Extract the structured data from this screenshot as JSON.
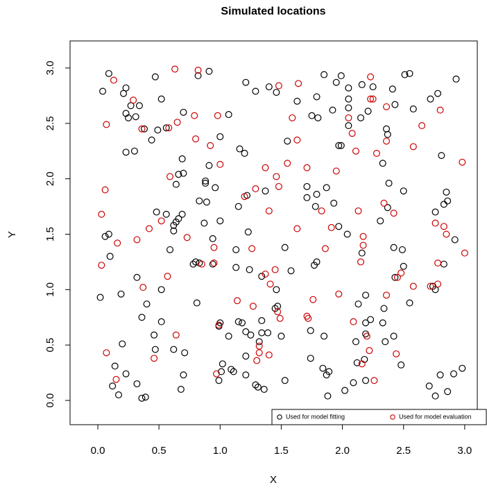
{
  "chart_data": {
    "type": "scatter",
    "title": "Simulated locations",
    "x_label": "X",
    "y_label": "Y",
    "xlim": [
      -0.227,
      3.103
    ],
    "ylim": [
      -0.219,
      3.244
    ],
    "xticks": [
      {
        "value": 0,
        "label": "0.0"
      },
      0.5,
      {
        "value": 1,
        "label": "1.0"
      },
      1.5,
      {
        "value": 2,
        "label": "2.0"
      },
      2.5,
      {
        "value": 3,
        "label": "3.0"
      }
    ],
    "yticks": [
      {
        "value": 0,
        "label": "0.0"
      },
      0.5,
      {
        "value": 1,
        "label": "1.0"
      },
      1.5,
      {
        "value": 2,
        "label": "2.0"
      },
      2.5,
      {
        "value": 3,
        "label": "3.0"
      }
    ],
    "grid": false,
    "legend": "bottom-right",
    "series": [
      {
        "name": "Used for model fitting",
        "color": "#000000",
        "x": [
          0.09,
          0.04,
          0.23,
          0.21,
          0.47,
          0.52,
          0.34,
          0.27,
          0.31,
          0.23,
          0.25,
          0.38,
          0.44,
          0.49,
          0.56,
          0.7,
          0.91,
          0.82,
          1.07,
          1.0,
          1.21,
          1.29,
          1.46,
          1.4,
          1.63,
          1.79,
          1.85,
          1.95,
          1.99,
          2.05,
          2.16,
          2.25,
          2.51,
          2.55,
          2.41,
          2.43,
          2.58,
          2.72,
          2.78,
          2.93,
          2.05,
          2.05,
          1.75,
          1.8,
          1.92,
          2.05,
          1.97,
          1.99,
          2.15,
          2.21,
          2.36,
          2.37,
          2.33,
          1.55,
          1.16,
          1.2,
          0.69,
          0.7,
          0.64,
          0.91,
          0.96,
          0.88,
          0.88,
          0.83,
          0.89,
          0.66,
          0.48,
          0.56,
          0.62,
          0.64,
          0.66,
          0.69,
          0.62,
          0.59,
          0.23,
          0.3,
          0.09,
          0.06,
          0.1,
          0.32,
          0.4,
          0.19,
          0.36,
          0.52,
          0.52,
          0.02,
          0.46,
          0.2,
          0.47,
          0.14,
          0.23,
          0.12,
          0.17,
          0.32,
          0.36,
          0.39,
          0.62,
          0.71,
          0.7,
          0.68,
          0.81,
          0.78,
          0.8,
          0.83,
          0.94,
          0.94,
          0.87,
          1.0,
          1.15,
          1.22,
          1.37,
          1.23,
          1.13,
          1.13,
          1.24,
          1.34,
          1.53,
          1.58,
          1.46,
          1.45,
          1.47,
          1.34,
          1.15,
          1.18,
          1.21,
          1.25,
          1.34,
          1.39,
          1.32,
          1.5,
          1.07,
          1.0,
          0.99,
          1.02,
          1.09,
          1.11,
          1.21,
          1.21,
          1.29,
          1.31,
          1.36,
          1.53,
          0.99,
          1.01,
          1.74,
          1.74,
          1.87,
          1.84,
          1.89,
          1.88,
          2.02,
          1.85,
          2.09,
          2.12,
          2.18,
          2.19,
          2.11,
          2.19,
          2.23,
          2.33,
          2.34,
          2.19,
          2.13,
          2.19,
          2.35,
          2.42,
          2.48,
          2.55,
          2.71,
          2.76,
          2.8,
          2.86,
          2.91,
          2.98,
          2.76,
          2.74,
          2.83,
          2.5,
          2.49,
          2.42,
          2.43,
          2.92,
          2.86,
          2.85,
          2.83,
          2.76,
          2.5,
          2.38,
          2.37,
          2.31,
          2.04,
          2.16,
          1.93,
          1.87,
          1.79,
          1.71,
          1.71,
          1.78,
          1.79,
          1.77,
          1.97,
          2.81
        ],
        "values": [
          2.95,
          2.79,
          2.82,
          2.77,
          2.92,
          2.72,
          2.66,
          2.66,
          2.56,
          2.59,
          2.55,
          2.45,
          2.35,
          2.44,
          2.46,
          2.6,
          2.97,
          2.93,
          2.58,
          2.38,
          2.87,
          2.79,
          2.78,
          2.83,
          2.7,
          2.74,
          2.94,
          2.87,
          2.93,
          2.82,
          2.85,
          2.83,
          2.94,
          2.95,
          2.81,
          2.67,
          2.63,
          2.72,
          2.77,
          2.9,
          2.72,
          2.64,
          2.57,
          2.55,
          2.62,
          2.48,
          2.3,
          2.3,
          2.55,
          2.61,
          2.45,
          2.4,
          2.14,
          2.34,
          2.27,
          2.23,
          2.18,
          2.05,
          1.95,
          2.12,
          1.92,
          1.98,
          1.96,
          1.8,
          1.79,
          2.04,
          1.7,
          1.68,
          1.58,
          1.61,
          1.64,
          1.68,
          1.53,
          1.36,
          2.24,
          2.25,
          1.5,
          1.48,
          1.3,
          1.11,
          0.87,
          0.96,
          0.75,
          0.71,
          1.0,
          0.93,
          0.59,
          0.51,
          0.46,
          0.31,
          0.24,
          0.13,
          0.05,
          0.15,
          0.02,
          0.03,
          0.46,
          0.43,
          0.23,
          0.1,
          0.88,
          1.23,
          1.25,
          1.24,
          1.23,
          1.46,
          1.6,
          1.62,
          1.75,
          1.85,
          1.89,
          1.52,
          1.36,
          1.2,
          1.18,
          1.12,
          1.38,
          1.17,
          1.0,
          0.83,
          0.85,
          0.72,
          0.71,
          0.7,
          0.62,
          0.59,
          0.61,
          0.61,
          0.53,
          0.58,
          0.58,
          0.7,
          0.67,
          0.33,
          0.28,
          0.26,
          0.23,
          0.4,
          0.14,
          0.12,
          0.1,
          0.18,
          0.18,
          0.26,
          0.38,
          0.63,
          0.23,
          0.29,
          0.26,
          0.04,
          0.09,
          0.58,
          0.16,
          0.34,
          0.37,
          0.18,
          0.53,
          0.6,
          0.73,
          0.7,
          0.83,
          0.7,
          0.87,
          0.95,
          0.53,
          0.58,
          0.32,
          0.88,
          0.13,
          0.04,
          0.23,
          0.08,
          0.24,
          0.29,
          1.0,
          1.03,
          1.23,
          1.21,
          1.36,
          1.38,
          1.11,
          1.45,
          1.8,
          1.88,
          1.77,
          1.7,
          1.89,
          1.96,
          1.74,
          1.62,
          1.5,
          1.33,
          1.78,
          1.92,
          1.86,
          1.83,
          1.93,
          1.75,
          1.25,
          1.22,
          1.57,
          2.21
        ]
      },
      {
        "name": "Used for model evaluation",
        "color": "#cc0000",
        "x": [
          0.13,
          0.07,
          0.29,
          0.36,
          0.63,
          0.82,
          0.58,
          0.65,
          0.79,
          0.8,
          0.98,
          0.92,
          1.0,
          0.59,
          0.06,
          0.03,
          0.16,
          0.32,
          0.42,
          0.52,
          0.73,
          0.03,
          0.37,
          0.57,
          0.85,
          0.95,
          0.95,
          1.2,
          1.4,
          1.29,
          1.46,
          1.48,
          1.37,
          1.55,
          1.48,
          1.64,
          1.63,
          1.59,
          1.71,
          1.83,
          1.91,
          1.95,
          2.05,
          2.08,
          2.11,
          2.23,
          2.23,
          2.25,
          2.36,
          2.36,
          2.28,
          2.65,
          2.58,
          2.8,
          2.98,
          2.34,
          2.42,
          2.13,
          2.17,
          2.17,
          2.15,
          1.86,
          1.63,
          1.26,
          1.37,
          1.41,
          1.45,
          1.14,
          1.27,
          1.47,
          1.49,
          1.71,
          1.72,
          1.76,
          1.97,
          2.09,
          2.2,
          2.22,
          2.16,
          2.26,
          2.36,
          2.44,
          2.45,
          2.48,
          2.58,
          2.72,
          2.78,
          2.78,
          2.76,
          2.83,
          2.85,
          3.0,
          1.32,
          1.32,
          1.4,
          1.3,
          0.99,
          0.97,
          0.64,
          0.46,
          0.07,
          0.15
        ],
        "values": [
          2.89,
          2.49,
          2.71,
          2.45,
          2.99,
          2.98,
          2.46,
          2.51,
          2.57,
          2.36,
          2.57,
          2.3,
          2.13,
          2.02,
          1.9,
          1.68,
          1.42,
          1.45,
          1.55,
          1.62,
          1.47,
          1.22,
          1.02,
          1.12,
          1.23,
          1.38,
          1.24,
          1.84,
          1.71,
          1.91,
          2.02,
          1.93,
          2.1,
          2.14,
          2.84,
          2.86,
          2.35,
          2.55,
          2.1,
          1.71,
          1.56,
          2.07,
          2.55,
          2.41,
          2.25,
          2.92,
          2.72,
          2.72,
          2.65,
          2.34,
          2.23,
          2.48,
          2.29,
          2.62,
          2.15,
          1.78,
          1.69,
          1.71,
          1.48,
          1.4,
          1.25,
          1.37,
          1.55,
          1.37,
          1.14,
          1.05,
          1.18,
          0.9,
          0.85,
          0.8,
          0.74,
          0.76,
          0.74,
          0.91,
          0.96,
          0.71,
          0.58,
          0.45,
          0.33,
          0.18,
          0.95,
          0.42,
          1.11,
          1.15,
          1.03,
          1.03,
          1.05,
          1.24,
          1.6,
          1.57,
          1.5,
          1.33,
          0.49,
          0.43,
          0.41,
          0.36,
          0.68,
          0.24,
          0.59,
          0.38,
          0.43,
          0.19
        ]
      }
    ]
  }
}
